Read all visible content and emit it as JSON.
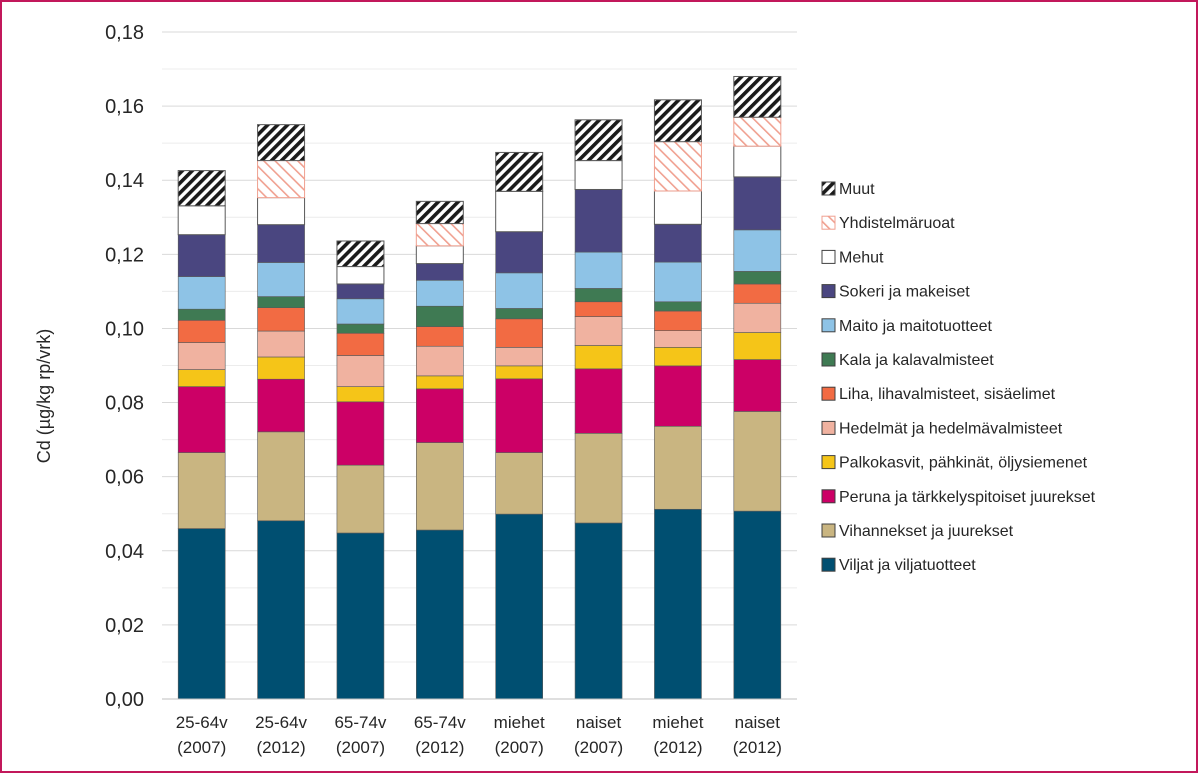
{
  "chart_data": {
    "type": "bar",
    "stacked": true,
    "ylabel": "Cd (µg/kg rp/vrk)",
    "ylim": [
      0,
      0.18
    ],
    "yticks": [
      "0,00",
      "0,02",
      "0,04",
      "0,06",
      "0,08",
      "0,10",
      "0,12",
      "0,14",
      "0,16",
      "0,18"
    ],
    "grid": true,
    "legend_position": "right",
    "categories": [
      [
        "25-64v",
        "(2007)"
      ],
      [
        "25-64v",
        "(2012)"
      ],
      [
        "65-74v",
        "(2007)"
      ],
      [
        "65-74v",
        "(2012)"
      ],
      [
        "miehet",
        "(2007)"
      ],
      [
        "naiset",
        "(2007)"
      ],
      [
        "miehet",
        "(2012)"
      ],
      [
        "naiset",
        "(2012)"
      ]
    ],
    "series": [
      {
        "name": "Viljat ja viljatuotteet",
        "color": "#004f71",
        "pattern": "solid",
        "values": [
          0.046,
          0.0481,
          0.0448,
          0.0456,
          0.0499,
          0.0475,
          0.0512,
          0.0507
        ]
      },
      {
        "name": "Vihannekset ja juurekset",
        "color": "#c9b581",
        "pattern": "solid",
        "values": [
          0.0205,
          0.024,
          0.0183,
          0.0236,
          0.0166,
          0.0242,
          0.0224,
          0.0269
        ]
      },
      {
        "name": "Peruna ja tärkkelyspitoiset juurekset",
        "color": "#cc0066",
        "pattern": "solid",
        "values": [
          0.0178,
          0.0142,
          0.0171,
          0.0145,
          0.0199,
          0.0174,
          0.0163,
          0.014
        ]
      },
      {
        "name": "Palkokasvit, pähkinät, öljysiemenet",
        "color": "#f5c518",
        "pattern": "solid",
        "values": [
          0.0046,
          0.006,
          0.0041,
          0.0035,
          0.0035,
          0.0063,
          0.005,
          0.0073
        ]
      },
      {
        "name": "Hedelmät ja hedelmävalmisteet",
        "color": "#f0b2a0",
        "pattern": "solid",
        "values": [
          0.0073,
          0.007,
          0.0084,
          0.008,
          0.005,
          0.0078,
          0.0045,
          0.0079
        ]
      },
      {
        "name": "Liha, lihavalmisteet, sisäelimet",
        "color": "#f26b43",
        "pattern": "solid",
        "values": [
          0.006,
          0.0063,
          0.006,
          0.0053,
          0.0077,
          0.004,
          0.0053,
          0.0052
        ]
      },
      {
        "name": "Kala ja kalavalmisteet",
        "color": "#3f7a53",
        "pattern": "solid",
        "values": [
          0.003,
          0.003,
          0.0025,
          0.0055,
          0.0028,
          0.0036,
          0.0025,
          0.0034
        ]
      },
      {
        "name": "Maito ja maitotuotteet",
        "color": "#8ec3e6",
        "pattern": "solid",
        "values": [
          0.0088,
          0.0092,
          0.0068,
          0.007,
          0.0096,
          0.0098,
          0.0107,
          0.0112
        ]
      },
      {
        "name": "Sokeri ja makeiset",
        "color": "#4a4680",
        "pattern": "solid",
        "values": [
          0.0113,
          0.0102,
          0.004,
          0.0045,
          0.0111,
          0.0169,
          0.0102,
          0.0143
        ]
      },
      {
        "name": "Mehut",
        "color": "#ffffff",
        "pattern": "solid",
        "values": [
          0.0078,
          0.0073,
          0.0047,
          0.0048,
          0.0109,
          0.0078,
          0.009,
          0.0083
        ]
      },
      {
        "name": "Yhdistelmäruoat",
        "color": "#f0a090",
        "pattern": "hatch-light",
        "values": [
          0.0,
          0.01,
          0.0,
          0.006,
          0.0,
          0.0,
          0.0133,
          0.0078
        ]
      },
      {
        "name": "Muut",
        "color": "#1a1a1a",
        "pattern": "hatch-dark",
        "values": [
          0.0095,
          0.0097,
          0.0069,
          0.006,
          0.0105,
          0.011,
          0.0113,
          0.011
        ]
      }
    ]
  }
}
